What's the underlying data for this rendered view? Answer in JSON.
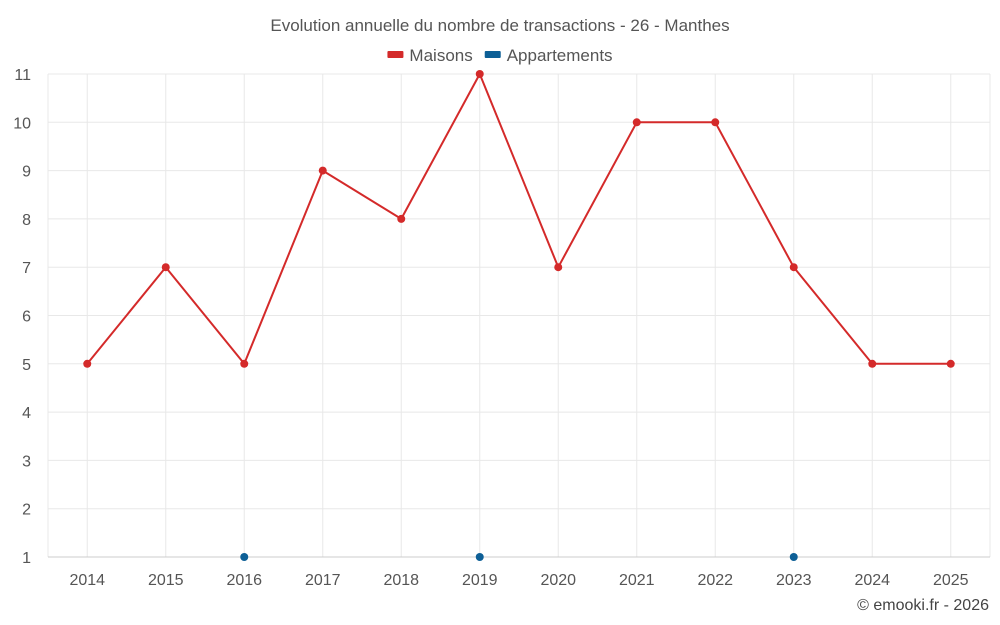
{
  "chart_data": {
    "type": "line",
    "title": "Evolution annuelle du nombre de transactions - 26 - Manthes",
    "categories": [
      "2014",
      "2015",
      "2016",
      "2017",
      "2018",
      "2019",
      "2020",
      "2021",
      "2022",
      "2023",
      "2024",
      "2025"
    ],
    "ylim": [
      1,
      11
    ],
    "yticks": [
      1,
      2,
      3,
      4,
      5,
      6,
      7,
      8,
      9,
      10,
      11
    ],
    "grid": true,
    "legend_position": "top-center",
    "series": [
      {
        "name": "Maisons",
        "color": "#d42a2a",
        "values": [
          5,
          7,
          5,
          9,
          8,
          11,
          7,
          10,
          10,
          7,
          5,
          5
        ]
      },
      {
        "name": "Appartements",
        "color": "#0d5f96",
        "values": [
          null,
          null,
          1,
          null,
          null,
          1,
          null,
          null,
          null,
          1,
          null,
          null
        ]
      }
    ],
    "xlabel": "",
    "ylabel": ""
  },
  "credit": "© emooki.fr - 2026"
}
